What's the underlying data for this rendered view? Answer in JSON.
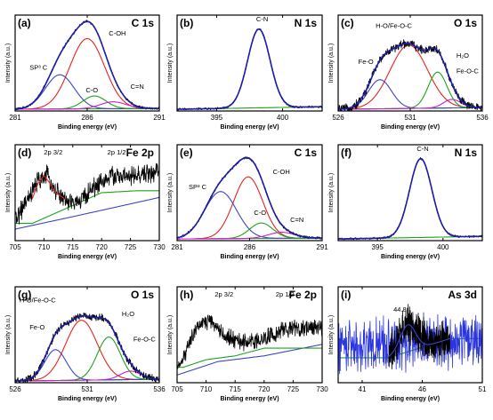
{
  "chart_data": [
    {
      "type": "line",
      "letter": "(a)",
      "title": "C 1s",
      "xlabel": "Binding energy (eV)",
      "ylabel": "Intensity (a.u.)",
      "xlim": [
        281,
        291
      ],
      "ylim": [
        0,
        1.12
      ],
      "xticks": [
        "281",
        "286",
        "291"
      ],
      "series": [
        {
          "color": "#e8231c",
          "peak": {
            "center": 286.0,
            "height": 0.82,
            "width": 1.2
          }
        },
        {
          "color": "#3b44c8",
          "peak": {
            "center": 284.1,
            "height": 0.4,
            "width": 1.0
          }
        },
        {
          "color": "#1da31d",
          "peak": {
            "center": 286.5,
            "height": 0.15,
            "width": 0.8
          }
        },
        {
          "color": "#d11bd1",
          "peak": {
            "center": 287.8,
            "height": 0.08,
            "width": 0.9
          }
        },
        {
          "role": "background",
          "color": "#1da31d",
          "points": [
            [
              281,
              0.02
            ],
            [
              291,
              0.03
            ]
          ]
        },
        {
          "role": "raw",
          "color": "#000000",
          "noise": 0.012
        },
        {
          "role": "envelope",
          "color": "#1c1ca8"
        }
      ],
      "annotations": [
        {
          "text": "C-OH",
          "x": 287.5,
          "y": 0.88
        },
        {
          "text": "SP³ C",
          "x": 282.0,
          "y": 0.48
        },
        {
          "text": "C-O",
          "x": 285.9,
          "y": 0.22
        },
        {
          "text": "C=N",
          "x": 289.0,
          "y": 0.26
        }
      ]
    },
    {
      "type": "line",
      "letter": "(b)",
      "title": "N 1s",
      "xlabel": "Binding energy (eV)",
      "ylabel": "Intensity (a.u.)",
      "xlim": [
        392,
        403
      ],
      "ylim": [
        0,
        1.12
      ],
      "xticks": [
        "395",
        "400"
      ],
      "series": [
        {
          "color": "#3b44c8",
          "peak": {
            "center": 398.2,
            "height": 0.92,
            "width": 0.85
          }
        },
        {
          "role": "background",
          "color": "#1da31d",
          "points": [
            [
              392,
              0.02
            ],
            [
              403,
              0.05
            ]
          ]
        },
        {
          "role": "raw",
          "color": "#000000",
          "noise": 0.01
        },
        {
          "role": "envelope",
          "color": "#1c1ca8"
        }
      ],
      "annotations": [
        {
          "text": "C-N",
          "x": 398.0,
          "y": 1.05
        }
      ]
    },
    {
      "type": "line",
      "letter": "(c)",
      "title": "O 1s",
      "xlabel": "Binding energy (eV)",
      "ylabel": "Intensity (a.u.)",
      "xlim": [
        526,
        536
      ],
      "ylim": [
        0,
        1.12
      ],
      "xticks": [
        "526",
        "531",
        "536"
      ],
      "series": [
        {
          "color": "#e8231c",
          "peak": {
            "center": 530.9,
            "height": 0.74,
            "width": 1.3
          }
        },
        {
          "color": "#3b44c8",
          "peak": {
            "center": 528.9,
            "height": 0.34,
            "width": 0.8
          }
        },
        {
          "color": "#1da31d",
          "peak": {
            "center": 532.9,
            "height": 0.42,
            "width": 0.65
          }
        },
        {
          "color": "#d11bd1",
          "peak": {
            "center": 533.9,
            "height": 0.1,
            "width": 0.6
          }
        },
        {
          "role": "background",
          "color": "#1da31d",
          "points": [
            [
              526,
              0.02
            ],
            [
              536,
              0.04
            ]
          ]
        },
        {
          "role": "raw",
          "color": "#000000",
          "noise": 0.04
        },
        {
          "role": "envelope",
          "color": "#1c1ca8"
        }
      ],
      "annotations": [
        {
          "text": "H-O/Fe-O-C",
          "x": 528.6,
          "y": 0.97
        },
        {
          "text": "Fe-O",
          "x": 527.4,
          "y": 0.55
        },
        {
          "text": "H₂O",
          "x": 534.2,
          "y": 0.62
        },
        {
          "text": "Fe-O-C",
          "x": 534.2,
          "y": 0.44
        }
      ]
    },
    {
      "type": "line",
      "letter": "(d)",
      "title": "Fe 2p",
      "xlabel": "Binding energy (eV)",
      "ylabel": "Intensity (a.u.)",
      "xlim": [
        705,
        730
      ],
      "ylim": [
        0,
        1.0
      ],
      "xticks": [
        "705",
        "710",
        "715",
        "720",
        "725",
        "730"
      ],
      "series": [
        {
          "role": "background",
          "color": "#3b44c8",
          "points": [
            [
              705,
              0.12
            ],
            [
              715,
              0.25
            ],
            [
              730,
              0.45
            ]
          ]
        },
        {
          "role": "background",
          "color": "#1da31d",
          "points": [
            [
              708,
              0.18
            ],
            [
              714,
              0.34
            ],
            [
              720,
              0.5
            ],
            [
              726,
              0.52
            ]
          ]
        },
        {
          "role": "fit",
          "color": "#e8231c",
          "points": [
            [
              708.0,
              0.44
            ],
            [
              709.0,
              0.6
            ],
            [
              710.0,
              0.68
            ],
            [
              711.0,
              0.6
            ],
            [
              712.0,
              0.5
            ],
            [
              713.5,
              0.44
            ]
          ]
        },
        {
          "role": "raw",
          "color": "#000000",
          "noise": 0.08,
          "points": [
            [
              705,
              0.22
            ],
            [
              707,
              0.4
            ],
            [
              709,
              0.62
            ],
            [
              710.5,
              0.68
            ],
            [
              712,
              0.52
            ],
            [
              714,
              0.4
            ],
            [
              716,
              0.4
            ],
            [
              718,
              0.52
            ],
            [
              720,
              0.62
            ],
            [
              722,
              0.68
            ],
            [
              725,
              0.66
            ],
            [
              728,
              0.7
            ],
            [
              730,
              0.72
            ]
          ]
        }
      ],
      "annotations": [
        {
          "text": "2p 3/2",
          "x": 710.0,
          "y": 0.9
        },
        {
          "text": "2p 1/2",
          "x": 721.0,
          "y": 0.9
        }
      ]
    },
    {
      "type": "line",
      "letter": "(e)",
      "title": "C 1s",
      "xlabel": "Binding energy (eV)",
      "ylabel": "Intensity (a.u.)",
      "xlim": [
        281,
        291
      ],
      "ylim": [
        0,
        1.12
      ],
      "xticks": [
        "281",
        "286",
        "291"
      ],
      "series": [
        {
          "color": "#e8231c",
          "peak": {
            "center": 285.9,
            "height": 0.72,
            "width": 1.0
          }
        },
        {
          "color": "#3b44c8",
          "peak": {
            "center": 284.0,
            "height": 0.55,
            "width": 1.1
          }
        },
        {
          "color": "#1da31d",
          "peak": {
            "center": 286.8,
            "height": 0.18,
            "width": 0.8
          }
        },
        {
          "color": "#d11bd1",
          "peak": {
            "center": 288.2,
            "height": 0.07,
            "width": 0.9
          }
        },
        {
          "role": "background",
          "color": "#1da31d",
          "points": [
            [
              281,
              0.02
            ],
            [
              291,
              0.03
            ]
          ]
        },
        {
          "role": "raw",
          "color": "#000000",
          "noise": 0.012
        },
        {
          "role": "envelope",
          "color": "#1c1ca8"
        }
      ],
      "annotations": [
        {
          "text": "C-OH",
          "x": 287.6,
          "y": 0.78
        },
        {
          "text": "SP³ C",
          "x": 281.8,
          "y": 0.6
        },
        {
          "text": "C-O",
          "x": 286.3,
          "y": 0.3
        },
        {
          "text": "C=N",
          "x": 288.8,
          "y": 0.22
        }
      ]
    },
    {
      "type": "line",
      "letter": "(f)",
      "title": "N 1s",
      "xlabel": "Binding energy (eV)",
      "ylabel": "Intensity (a.u.)",
      "xlim": [
        392,
        403
      ],
      "ylim": [
        0,
        1.12
      ],
      "xticks": [
        "395",
        "400"
      ],
      "series": [
        {
          "color": "#3b44c8",
          "peak": {
            "center": 398.3,
            "height": 0.92,
            "width": 0.85
          }
        },
        {
          "role": "background",
          "color": "#1da31d",
          "points": [
            [
              392,
              0.02
            ],
            [
              403,
              0.05
            ]
          ]
        },
        {
          "role": "raw",
          "color": "#000000",
          "noise": 0.01
        },
        {
          "role": "envelope",
          "color": "#1c1ca8"
        }
      ],
      "annotations": [
        {
          "text": "C-N",
          "x": 398.0,
          "y": 1.05
        }
      ]
    },
    {
      "type": "line",
      "letter": "(g)",
      "title": "O 1s",
      "xlabel": "Binding energy (eV)",
      "ylabel": "Intensity (a.u.)",
      "xlim": [
        526,
        536
      ],
      "ylim": [
        0,
        1.12
      ],
      "xticks": [
        "526",
        "531",
        "536"
      ],
      "series": [
        {
          "color": "#e8231c",
          "peak": {
            "center": 530.6,
            "height": 0.7,
            "width": 1.1
          }
        },
        {
          "color": "#3b44c8",
          "peak": {
            "center": 528.8,
            "height": 0.36,
            "width": 0.75
          }
        },
        {
          "color": "#1da31d",
          "peak": {
            "center": 532.5,
            "height": 0.5,
            "width": 0.8
          }
        },
        {
          "color": "#d11bd1",
          "peak": {
            "center": 534.0,
            "height": 0.1,
            "width": 0.7
          }
        },
        {
          "role": "background",
          "color": "#1da31d",
          "points": [
            [
              526,
              0.02
            ],
            [
              536,
              0.04
            ]
          ]
        },
        {
          "role": "raw",
          "color": "#000000",
          "noise": 0.035
        },
        {
          "role": "envelope",
          "color": "#1c1ca8"
        }
      ],
      "annotations": [
        {
          "text": "H-O/Fe-O-C",
          "x": 526.3,
          "y": 0.94
        },
        {
          "text": "Fe-O",
          "x": 527.0,
          "y": 0.62
        },
        {
          "text": "H₂O",
          "x": 533.4,
          "y": 0.78
        },
        {
          "text": "Fe-O-C",
          "x": 534.2,
          "y": 0.48
        }
      ]
    },
    {
      "type": "line",
      "letter": "(h)",
      "title": "Fe 2p",
      "xlabel": "Binding energy (eV)",
      "ylabel": "Intensity (a.u.)",
      "xlim": [
        705,
        730
      ],
      "ylim": [
        0,
        1.0
      ],
      "xticks": [
        "705",
        "710",
        "715",
        "720",
        "725",
        "730"
      ],
      "series": [
        {
          "role": "background",
          "color": "#3b44c8",
          "points": [
            [
              705,
              0.08
            ],
            [
              712,
              0.22
            ],
            [
              720,
              0.28
            ],
            [
              730,
              0.4
            ]
          ]
        },
        {
          "role": "background",
          "color": "#1da31d",
          "points": [
            [
              706,
              0.16
            ],
            [
              710,
              0.24
            ],
            [
              715,
              0.28
            ],
            [
              720,
              0.36
            ]
          ]
        },
        {
          "role": "raw",
          "color": "#000000",
          "noise": 0.07,
          "points": [
            [
              705,
              0.12
            ],
            [
              707,
              0.4
            ],
            [
              709,
              0.62
            ],
            [
              711,
              0.64
            ],
            [
              713,
              0.5
            ],
            [
              716,
              0.42
            ],
            [
              719,
              0.44
            ],
            [
              722,
              0.52
            ],
            [
              725,
              0.58
            ],
            [
              727,
              0.56
            ],
            [
              730,
              0.58
            ]
          ]
        }
      ],
      "annotations": [
        {
          "text": "2p 3/2",
          "x": 711.5,
          "y": 0.9
        },
        {
          "text": "2p 1/2",
          "x": 722.0,
          "y": 0.9
        }
      ]
    },
    {
      "type": "line",
      "letter": "(i)",
      "title": "As 3d",
      "xlabel": "Binding energy (eV)",
      "ylabel": "Intensity (a.u.)",
      "xlim": [
        39,
        51
      ],
      "ylim": [
        0,
        1.0
      ],
      "xticks": [
        "41",
        "46",
        "51"
      ],
      "series": [
        {
          "role": "raw",
          "color": "#2a35e0",
          "noise": 0.22,
          "points": [
            [
              39,
              0.4
            ],
            [
              51,
              0.44
            ]
          ]
        },
        {
          "role": "raw",
          "color": "#000000",
          "noise": 0.15,
          "points": [
            [
              43.2,
              0.3
            ],
            [
              44.8,
              0.62
            ],
            [
              46.5,
              0.42
            ],
            [
              48.3,
              0.44
            ]
          ]
        },
        {
          "role": "fit",
          "color": "#3b44c8",
          "peak": {
            "center": 44.8,
            "height": 0.28,
            "width": 0.65
          },
          "base": [
            [
              43.2,
              0.26
            ],
            [
              48.3,
              0.46
            ]
          ]
        },
        {
          "role": "background",
          "color": "#1da31d",
          "points": [
            [
              43.2,
              0.26
            ],
            [
              48.3,
              0.46
            ]
          ]
        }
      ],
      "annotations": [
        {
          "text": "44.8",
          "x": 43.6,
          "y": 0.74
        }
      ]
    }
  ]
}
